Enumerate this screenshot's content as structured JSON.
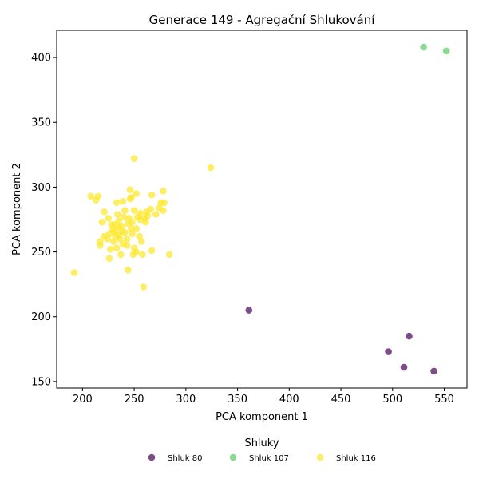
{
  "chart_data": {
    "type": "scatter",
    "title": "Generace 149 - Agregační Shlukování",
    "xlabel": "PCA komponent 1",
    "ylabel": "PCA komponent 2",
    "xlim": [
      175,
      572
    ],
    "ylim": [
      145,
      421
    ],
    "xticks": [
      200,
      250,
      300,
      350,
      400,
      450,
      500,
      550
    ],
    "yticks": [
      150,
      200,
      250,
      300,
      350,
      400
    ],
    "grid": false,
    "legend": {
      "title": "Shluky",
      "placement": "bottom-center"
    },
    "series": [
      {
        "name": "Shluk 80",
        "color": "#440154",
        "points": [
          [
            361,
            205
          ],
          [
            516,
            185
          ],
          [
            496,
            173
          ],
          [
            511,
            161
          ],
          [
            540,
            158
          ]
        ]
      },
      {
        "name": "Shluk 107",
        "color": "#5ec962",
        "points": [
          [
            530,
            408
          ],
          [
            552,
            405
          ]
        ]
      },
      {
        "name": "Shluk 116",
        "color": "#fde725",
        "points": [
          [
            250,
            322
          ],
          [
            324,
            315
          ],
          [
            192,
            234
          ],
          [
            259,
            223
          ],
          [
            244,
            236
          ],
          [
            284,
            248
          ],
          [
            267,
            251
          ],
          [
            226,
            245
          ],
          [
            208,
            293
          ],
          [
            215,
            293
          ],
          [
            213,
            290
          ],
          [
            233,
            288
          ],
          [
            239,
            289
          ],
          [
            246,
            291
          ],
          [
            247,
            292
          ],
          [
            246,
            298
          ],
          [
            252,
            295
          ],
          [
            267,
            294
          ],
          [
            278,
            297
          ],
          [
            276,
            288
          ],
          [
            279,
            288
          ],
          [
            274,
            284
          ],
          [
            278,
            282
          ],
          [
            266,
            283
          ],
          [
            262,
            281
          ],
          [
            256,
            280
          ],
          [
            250,
            282
          ],
          [
            241,
            282
          ],
          [
            234,
            279
          ],
          [
            221,
            281
          ],
          [
            225,
            276
          ],
          [
            219,
            273
          ],
          [
            228,
            271
          ],
          [
            235,
            274
          ],
          [
            245,
            276
          ],
          [
            253,
            277
          ],
          [
            260,
            276
          ],
          [
            271,
            279
          ],
          [
            261,
            273
          ],
          [
            238,
            270
          ],
          [
            247,
            268
          ],
          [
            252,
            268
          ],
          [
            231,
            266
          ],
          [
            241,
            265
          ],
          [
            232,
            262
          ],
          [
            235,
            263
          ],
          [
            243,
            260
          ],
          [
            230,
            258
          ],
          [
            224,
            260
          ],
          [
            217,
            258
          ],
          [
            217,
            255
          ],
          [
            221,
            262
          ],
          [
            227,
            252
          ],
          [
            233,
            253
          ],
          [
            239,
            256
          ],
          [
            243,
            255
          ],
          [
            250,
            253
          ],
          [
            255,
            262
          ],
          [
            257,
            258
          ],
          [
            237,
            248
          ],
          [
            249,
            248
          ],
          [
            258,
            248
          ],
          [
            252,
            250
          ],
          [
            248,
            264
          ],
          [
            244,
            272
          ],
          [
            229,
            267
          ],
          [
            236,
            260
          ],
          [
            231,
            271
          ],
          [
            226,
            264
          ],
          [
            240,
            277
          ],
          [
            263,
            278
          ],
          [
            256,
            275
          ],
          [
            248,
            273
          ],
          [
            238,
            266
          ],
          [
            235,
            269
          ]
        ]
      }
    ]
  }
}
